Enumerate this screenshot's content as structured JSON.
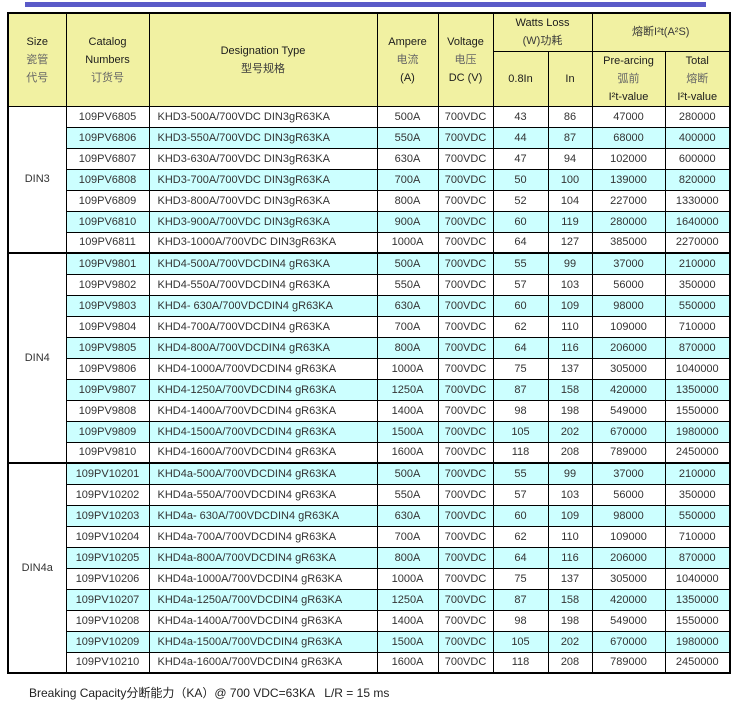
{
  "page": {
    "top_bar_color": "#5A5AC8",
    "footer_note": "Breaking Capacity分断能力（KA）@ 700 VDC=63KA   L/R = 15 ms"
  },
  "colors": {
    "header_bg": "#F1F1A2",
    "row_alt_bg": "#CCFFFF",
    "row_bg": "#FFFFFF",
    "border": "#000000"
  },
  "table": {
    "header": {
      "size_lines": [
        "Size",
        "瓷管",
        "代号"
      ],
      "catalog_lines": [
        "Catalog",
        "Numbers",
        "订货号"
      ],
      "designation_lines": [
        "Designation Type",
        "型号规格"
      ],
      "ampere_lines": [
        "Ampere",
        "电流",
        "(A)"
      ],
      "voltage_lines": [
        "Voltage",
        "电压",
        "DC (V)"
      ],
      "watts_lines": [
        "Watts Loss",
        "(W)功耗"
      ],
      "watts_sub": [
        "0.8In",
        "In"
      ],
      "i2t_label": "熔断I²t(A²S)",
      "prearcing_lines": [
        "Pre-arcing",
        "弧前",
        "I²t-value"
      ],
      "total_lines": [
        "Total",
        "熔断",
        "I²t-value"
      ]
    },
    "column_keys": [
      "catalog",
      "designation",
      "ampere",
      "voltage",
      "watts_0_8in",
      "watts_in",
      "prearcing_i2t",
      "total_i2t"
    ],
    "groups": [
      {
        "size": "DIN3",
        "rows": [
          [
            "109PV6805",
            "KHD3-500A/700VDC DIN3gR63KA",
            "500A",
            "700VDC",
            "43",
            "86",
            "47000",
            "280000"
          ],
          [
            "109PV6806",
            "KHD3-550A/700VDC DIN3gR63KA",
            "550A",
            "700VDC",
            "44",
            "87",
            "68000",
            "400000"
          ],
          [
            "109PV6807",
            "KHD3-630A/700VDC DIN3gR63KA",
            "630A",
            "700VDC",
            "47",
            "94",
            "102000",
            "600000"
          ],
          [
            "109PV6808",
            "KHD3-700A/700VDC DIN3gR63KA",
            "700A",
            "700VDC",
            "50",
            "100",
            "139000",
            "820000"
          ],
          [
            "109PV6809",
            "KHD3-800A/700VDC DIN3gR63KA",
            "800A",
            "700VDC",
            "52",
            "104",
            "227000",
            "1330000"
          ],
          [
            "109PV6810",
            "KHD3-900A/700VDC DIN3gR63KA",
            "900A",
            "700VDC",
            "60",
            "119",
            "280000",
            "1640000"
          ],
          [
            "109PV6811",
            "KHD3-1000A/700VDC DIN3gR63KA",
            "1000A",
            "700VDC",
            "64",
            "127",
            "385000",
            "2270000"
          ]
        ]
      },
      {
        "size": "DIN4",
        "rows": [
          [
            "109PV9801",
            "KHD4-500A/700VDCDIN4 gR63KA",
            "500A",
            "700VDC",
            "55",
            "99",
            "37000",
            "210000"
          ],
          [
            "109PV9802",
            "KHD4-550A/700VDCDIN4 gR63KA",
            "550A",
            "700VDC",
            "57",
            "103",
            "56000",
            "350000"
          ],
          [
            "109PV9803",
            "KHD4- 630A/700VDCDIN4 gR63KA",
            "630A",
            "700VDC",
            "60",
            "109",
            "98000",
            "550000"
          ],
          [
            "109PV9804",
            "KHD4-700A/700VDCDIN4 gR63KA",
            "700A",
            "700VDC",
            "62",
            "110",
            "109000",
            "710000"
          ],
          [
            "109PV9805",
            "KHD4-800A/700VDCDIN4 gR63KA",
            "800A",
            "700VDC",
            "64",
            "116",
            "206000",
            "870000"
          ],
          [
            "109PV9806",
            "KHD4-1000A/700VDCDIN4 gR63KA",
            "1000A",
            "700VDC",
            "75",
            "137",
            "305000",
            "1040000"
          ],
          [
            "109PV9807",
            "KHD4-1250A/700VDCDIN4 gR63KA",
            "1250A",
            "700VDC",
            "87",
            "158",
            "420000",
            "1350000"
          ],
          [
            "109PV9808",
            "KHD4-1400A/700VDCDIN4 gR63KA",
            "1400A",
            "700VDC",
            "98",
            "198",
            "549000",
            "1550000"
          ],
          [
            "109PV9809",
            "KHD4-1500A/700VDCDIN4 gR63KA",
            "1500A",
            "700VDC",
            "105",
            "202",
            "670000",
            "1980000"
          ],
          [
            "109PV9810",
            "KHD4-1600A/700VDCDIN4 gR63KA",
            "1600A",
            "700VDC",
            "118",
            "208",
            "789000",
            "2450000"
          ]
        ]
      },
      {
        "size": "DIN4a",
        "rows": [
          [
            "109PV10201",
            "KHD4a-500A/700VDCDIN4 gR63KA",
            "500A",
            "700VDC",
            "55",
            "99",
            "37000",
            "210000"
          ],
          [
            "109PV10202",
            "KHD4a-550A/700VDCDIN4 gR63KA",
            "550A",
            "700VDC",
            "57",
            "103",
            "56000",
            "350000"
          ],
          [
            "109PV10203",
            "KHD4a- 630A/700VDCDIN4 gR63KA",
            "630A",
            "700VDC",
            "60",
            "109",
            "98000",
            "550000"
          ],
          [
            "109PV10204",
            "KHD4a-700A/700VDCDIN4 gR63KA",
            "700A",
            "700VDC",
            "62",
            "110",
            "109000",
            "710000"
          ],
          [
            "109PV10205",
            "KHD4a-800A/700VDCDIN4 gR63KA",
            "800A",
            "700VDC",
            "64",
            "116",
            "206000",
            "870000"
          ],
          [
            "109PV10206",
            "KHD4a-1000A/700VDCDIN4 gR63KA",
            "1000A",
            "700VDC",
            "75",
            "137",
            "305000",
            "1040000"
          ],
          [
            "109PV10207",
            "KHD4a-1250A/700VDCDIN4 gR63KA",
            "1250A",
            "700VDC",
            "87",
            "158",
            "420000",
            "1350000"
          ],
          [
            "109PV10208",
            "KHD4a-1400A/700VDCDIN4 gR63KA",
            "1400A",
            "700VDC",
            "98",
            "198",
            "549000",
            "1550000"
          ],
          [
            "109PV10209",
            "KHD4a-1500A/700VDCDIN4 gR63KA",
            "1500A",
            "700VDC",
            "105",
            "202",
            "670000",
            "1980000"
          ],
          [
            "109PV10210",
            "KHD4a-1600A/700VDCDIN4 gR63KA",
            "1600A",
            "700VDC",
            "118",
            "208",
            "789000",
            "2450000"
          ]
        ]
      }
    ]
  }
}
